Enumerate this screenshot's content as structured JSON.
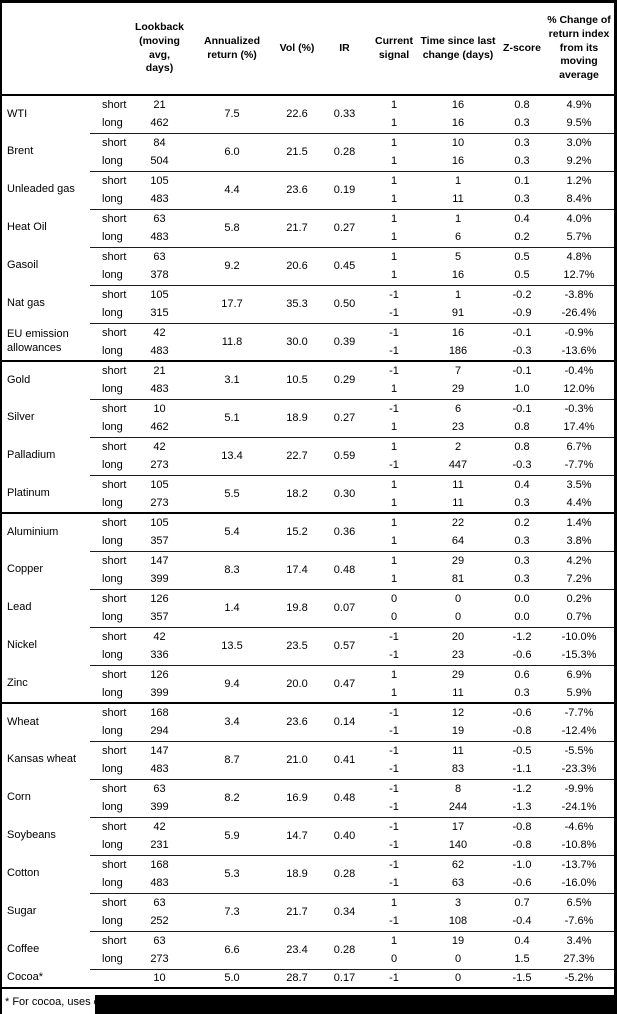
{
  "table": {
    "columns": [
      "",
      "Lookback (moving avg, days)",
      "Annualized return (%)",
      "Vol (%)",
      "IR",
      "Current signal",
      "Time since last change (days)",
      "Z-score",
      "% Change of return index from its moving average"
    ],
    "row_fields": [
      "horizon",
      "lookback",
      "current_signal",
      "time_since_last_change_days",
      "z_score",
      "pct_change_from_moving_avg"
    ],
    "commodities": [
      {
        "name": "WTI",
        "section_start": false,
        "ann": "7.5",
        "vol": "22.6",
        "ir": "0.33",
        "rows": [
          [
            "short",
            "21",
            "1",
            "16",
            "0.8",
            "4.9%"
          ],
          [
            "long",
            "462",
            "1",
            "16",
            "0.3",
            "9.5%"
          ]
        ]
      },
      {
        "name": "Brent",
        "section_start": false,
        "ann": "6.0",
        "vol": "21.5",
        "ir": "0.28",
        "rows": [
          [
            "short",
            "84",
            "1",
            "10",
            "0.3",
            "3.0%"
          ],
          [
            "long",
            "504",
            "1",
            "16",
            "0.3",
            "9.2%"
          ]
        ]
      },
      {
        "name": "Unleaded gas",
        "section_start": false,
        "ann": "4.4",
        "vol": "23.6",
        "ir": "0.19",
        "rows": [
          [
            "short",
            "105",
            "1",
            "1",
            "0.1",
            "1.2%"
          ],
          [
            "long",
            "483",
            "1",
            "11",
            "0.3",
            "8.4%"
          ]
        ]
      },
      {
        "name": "Heat Oil",
        "section_start": false,
        "ann": "5.8",
        "vol": "21.7",
        "ir": "0.27",
        "rows": [
          [
            "short",
            "63",
            "1",
            "1",
            "0.4",
            "4.0%"
          ],
          [
            "long",
            "483",
            "1",
            "6",
            "0.2",
            "5.7%"
          ]
        ]
      },
      {
        "name": "Gasoil",
        "section_start": false,
        "ann": "9.2",
        "vol": "20.6",
        "ir": "0.45",
        "rows": [
          [
            "short",
            "63",
            "1",
            "5",
            "0.5",
            "4.8%"
          ],
          [
            "long",
            "378",
            "1",
            "16",
            "0.5",
            "12.7%"
          ]
        ]
      },
      {
        "name": "Nat gas",
        "section_start": false,
        "ann": "17.7",
        "vol": "35.3",
        "ir": "0.50",
        "rows": [
          [
            "short",
            "105",
            "-1",
            "1",
            "-0.2",
            "-3.8%"
          ],
          [
            "long",
            "315",
            "-1",
            "91",
            "-0.9",
            "-26.4%"
          ]
        ]
      },
      {
        "name": "EU emission allowances",
        "section_start": false,
        "ann": "11.8",
        "vol": "30.0",
        "ir": "0.39",
        "rows": [
          [
            "short",
            "42",
            "-1",
            "16",
            "-0.1",
            "-0.9%"
          ],
          [
            "long",
            "483",
            "-1",
            "186",
            "-0.3",
            "-13.6%"
          ]
        ]
      },
      {
        "name": "Gold",
        "section_start": true,
        "ann": "3.1",
        "vol": "10.5",
        "ir": "0.29",
        "rows": [
          [
            "short",
            "21",
            "-1",
            "7",
            "-0.1",
            "-0.4%"
          ],
          [
            "long",
            "483",
            "1",
            "29",
            "1.0",
            "12.0%"
          ]
        ]
      },
      {
        "name": "Silver",
        "section_start": false,
        "ann": "5.1",
        "vol": "18.9",
        "ir": "0.27",
        "rows": [
          [
            "short",
            "10",
            "-1",
            "6",
            "-0.1",
            "-0.3%"
          ],
          [
            "long",
            "462",
            "1",
            "23",
            "0.8",
            "17.4%"
          ]
        ]
      },
      {
        "name": "Palladium",
        "section_start": false,
        "ann": "13.4",
        "vol": "22.7",
        "ir": "0.59",
        "rows": [
          [
            "short",
            "42",
            "1",
            "2",
            "0.8",
            "6.7%"
          ],
          [
            "long",
            "273",
            "-1",
            "447",
            "-0.3",
            "-7.7%"
          ]
        ]
      },
      {
        "name": "Platinum",
        "section_start": false,
        "ann": "5.5",
        "vol": "18.2",
        "ir": "0.30",
        "rows": [
          [
            "short",
            "105",
            "1",
            "11",
            "0.4",
            "3.5%"
          ],
          [
            "long",
            "273",
            "1",
            "11",
            "0.3",
            "4.4%"
          ]
        ]
      },
      {
        "name": "Aluminium",
        "section_start": true,
        "ann": "5.4",
        "vol": "15.2",
        "ir": "0.36",
        "rows": [
          [
            "short",
            "105",
            "1",
            "22",
            "0.2",
            "1.4%"
          ],
          [
            "long",
            "357",
            "1",
            "64",
            "0.3",
            "3.8%"
          ]
        ]
      },
      {
        "name": "Copper",
        "section_start": false,
        "ann": "8.3",
        "vol": "17.4",
        "ir": "0.48",
        "rows": [
          [
            "short",
            "147",
            "1",
            "29",
            "0.3",
            "4.2%"
          ],
          [
            "long",
            "399",
            "1",
            "81",
            "0.3",
            "7.2%"
          ]
        ]
      },
      {
        "name": "Lead",
        "section_start": false,
        "ann": "1.4",
        "vol": "19.8",
        "ir": "0.07",
        "rows": [
          [
            "short",
            "126",
            "0",
            "0",
            "0.0",
            "0.2%"
          ],
          [
            "long",
            "357",
            "0",
            "0",
            "0.0",
            "0.7%"
          ]
        ]
      },
      {
        "name": "Nickel",
        "section_start": false,
        "ann": "13.5",
        "vol": "23.5",
        "ir": "0.57",
        "rows": [
          [
            "short",
            "42",
            "-1",
            "20",
            "-1.2",
            "-10.0%"
          ],
          [
            "long",
            "336",
            "-1",
            "23",
            "-0.6",
            "-15.3%"
          ]
        ]
      },
      {
        "name": "Zinc",
        "section_start": false,
        "ann": "9.4",
        "vol": "20.0",
        "ir": "0.47",
        "rows": [
          [
            "short",
            "126",
            "1",
            "29",
            "0.6",
            "6.9%"
          ],
          [
            "long",
            "399",
            "1",
            "11",
            "0.3",
            "5.9%"
          ]
        ]
      },
      {
        "name": "Wheat",
        "section_start": true,
        "ann": "3.4",
        "vol": "23.6",
        "ir": "0.14",
        "rows": [
          [
            "short",
            "168",
            "-1",
            "12",
            "-0.6",
            "-7.7%"
          ],
          [
            "long",
            "294",
            "-1",
            "19",
            "-0.8",
            "-12.4%"
          ]
        ]
      },
      {
        "name": "Kansas wheat",
        "section_start": false,
        "ann": "8.7",
        "vol": "21.0",
        "ir": "0.41",
        "rows": [
          [
            "short",
            "147",
            "-1",
            "11",
            "-0.5",
            "-5.5%"
          ],
          [
            "long",
            "483",
            "-1",
            "83",
            "-1.1",
            "-23.3%"
          ]
        ]
      },
      {
        "name": "Corn",
        "section_start": false,
        "ann": "8.2",
        "vol": "16.9",
        "ir": "0.48",
        "rows": [
          [
            "short",
            "63",
            "-1",
            "8",
            "-1.2",
            "-9.9%"
          ],
          [
            "long",
            "399",
            "-1",
            "244",
            "-1.3",
            "-24.1%"
          ]
        ]
      },
      {
        "name": "Soybeans",
        "section_start": false,
        "ann": "5.9",
        "vol": "14.7",
        "ir": "0.40",
        "rows": [
          [
            "short",
            "42",
            "-1",
            "17",
            "-0.8",
            "-4.6%"
          ],
          [
            "long",
            "231",
            "-1",
            "140",
            "-0.8",
            "-10.8%"
          ]
        ]
      },
      {
        "name": "Cotton",
        "section_start": false,
        "ann": "5.3",
        "vol": "18.9",
        "ir": "0.28",
        "rows": [
          [
            "short",
            "168",
            "-1",
            "62",
            "-1.0",
            "-13.7%"
          ],
          [
            "long",
            "483",
            "-1",
            "63",
            "-0.6",
            "-16.0%"
          ]
        ]
      },
      {
        "name": "Sugar",
        "section_start": false,
        "ann": "7.3",
        "vol": "21.7",
        "ir": "0.34",
        "rows": [
          [
            "short",
            "63",
            "1",
            "3",
            "0.7",
            "6.5%"
          ],
          [
            "long",
            "252",
            "-1",
            "108",
            "-0.4",
            "-7.6%"
          ]
        ]
      },
      {
        "name": "Coffee",
        "section_start": false,
        "ann": "6.6",
        "vol": "23.4",
        "ir": "0.28",
        "rows": [
          [
            "short",
            "63",
            "1",
            "19",
            "0.4",
            "3.4%"
          ],
          [
            "long",
            "273",
            "0",
            "0",
            "1.5",
            "27.3%"
          ]
        ]
      },
      {
        "name": "Cocoa*",
        "section_start": false,
        "ann": "5.0",
        "vol": "28.7",
        "ir": "0.17",
        "rows": [
          [
            "",
            "10",
            "-1",
            "0",
            "-1.5",
            "-5.2%"
          ]
        ]
      }
    ],
    "footnote_visible": "* For cocoa, uses c"
  }
}
